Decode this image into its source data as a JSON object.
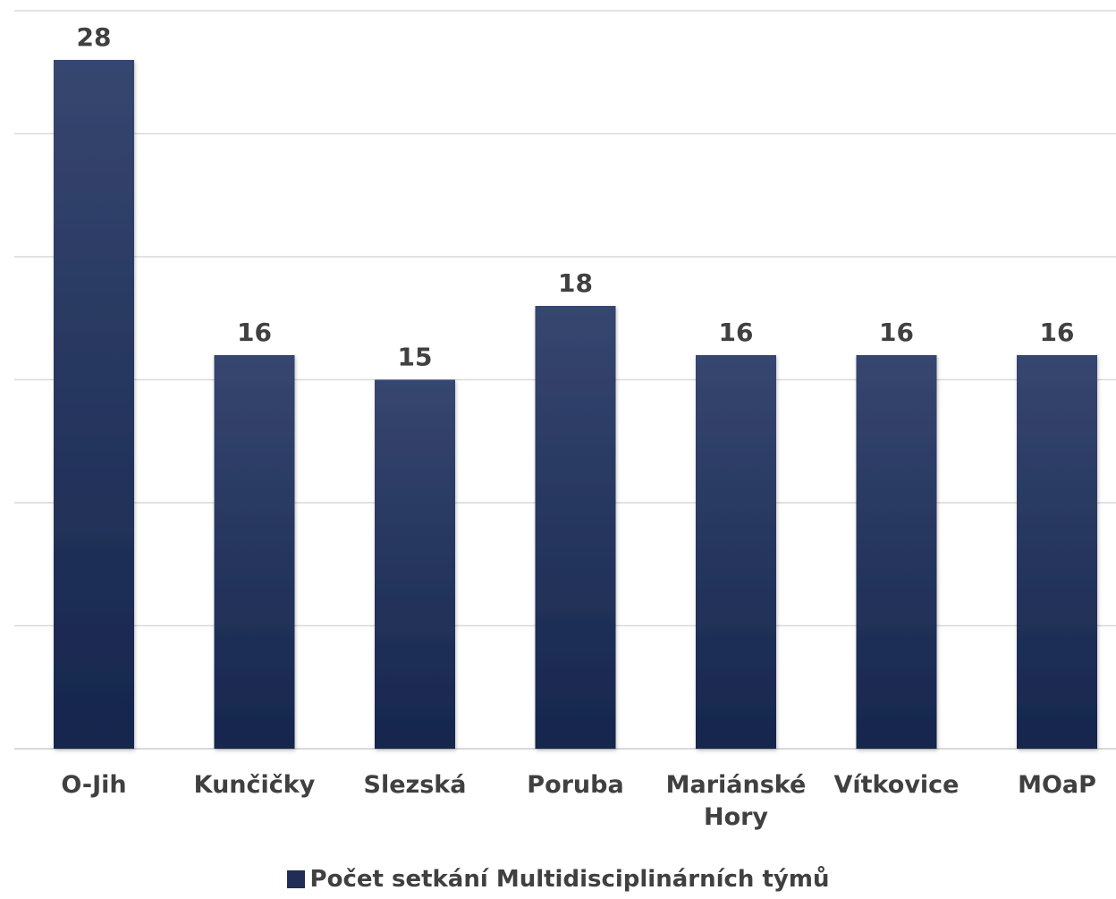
{
  "chart_data": {
    "type": "bar",
    "categories": [
      "O-Jih",
      "Kunčičky",
      "Slezská",
      "Poruba",
      "Mariánské Hory",
      "Vítkovice",
      "MOaP"
    ],
    "series": [
      {
        "name": "Počet setkání Multidisciplinárních týmů",
        "values": [
          28,
          16,
          15,
          18,
          16,
          16,
          16
        ],
        "color": "#1f2d57"
      }
    ],
    "ylim": [
      0,
      30
    ],
    "grid": true,
    "legend": "bottom",
    "title": "",
    "xlabel": "",
    "ylabel": ""
  }
}
